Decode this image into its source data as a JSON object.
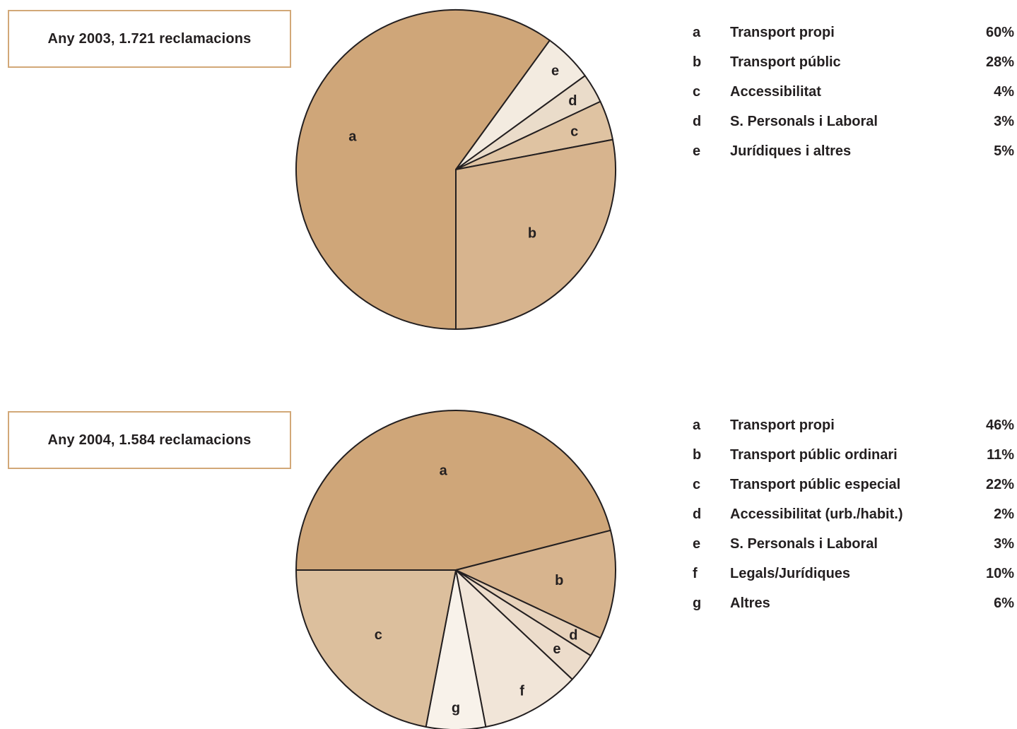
{
  "chart_data": [
    {
      "type": "pie",
      "title": "Any 2003, 1.721 reclamacions",
      "colors": [
        "#cfa679",
        "#d7b48e",
        "#dfc3a2",
        "#eadcca",
        "#f3ebe0"
      ],
      "slices": [
        {
          "key": "a",
          "label": "Transport propi",
          "value": 60,
          "display": "60%"
        },
        {
          "key": "b",
          "label": "Transport públic",
          "value": 28,
          "display": "28%"
        },
        {
          "key": "c",
          "label": "Accessibilitat",
          "value": 4,
          "display": "4%"
        },
        {
          "key": "d",
          "label": "S. Personals i Laboral",
          "value": 3,
          "display": "3%"
        },
        {
          "key": "e",
          "label": "Jurídiques i altres",
          "value": 5,
          "display": "5%"
        }
      ]
    },
    {
      "type": "pie",
      "title": "Any 2004, 1.584 reclamacions",
      "colors": [
        "#cfa679",
        "#d7b48e",
        "#dcbf9d",
        "#e7d2bb",
        "#ecdccb",
        "#f1e5d8",
        "#f8f2ea"
      ],
      "slices": [
        {
          "key": "a",
          "label": "Transport propi",
          "value": 46,
          "display": "46%"
        },
        {
          "key": "b",
          "label": "Transport públic ordinari",
          "value": 11,
          "display": "11%"
        },
        {
          "key": "c",
          "label": "Transport públic especial",
          "value": 22,
          "display": "22%"
        },
        {
          "key": "d",
          "label": "Accessibilitat (urb./habit.)",
          "value": 2,
          "display": "2%"
        },
        {
          "key": "e",
          "label": "S. Personals i Laboral",
          "value": 3,
          "display": "3%"
        },
        {
          "key": "f",
          "label": "Legals/Jurídiques",
          "value": 10,
          "display": "10%"
        },
        {
          "key": "g",
          "label": "Altres",
          "value": 6,
          "display": "6%"
        }
      ]
    }
  ]
}
